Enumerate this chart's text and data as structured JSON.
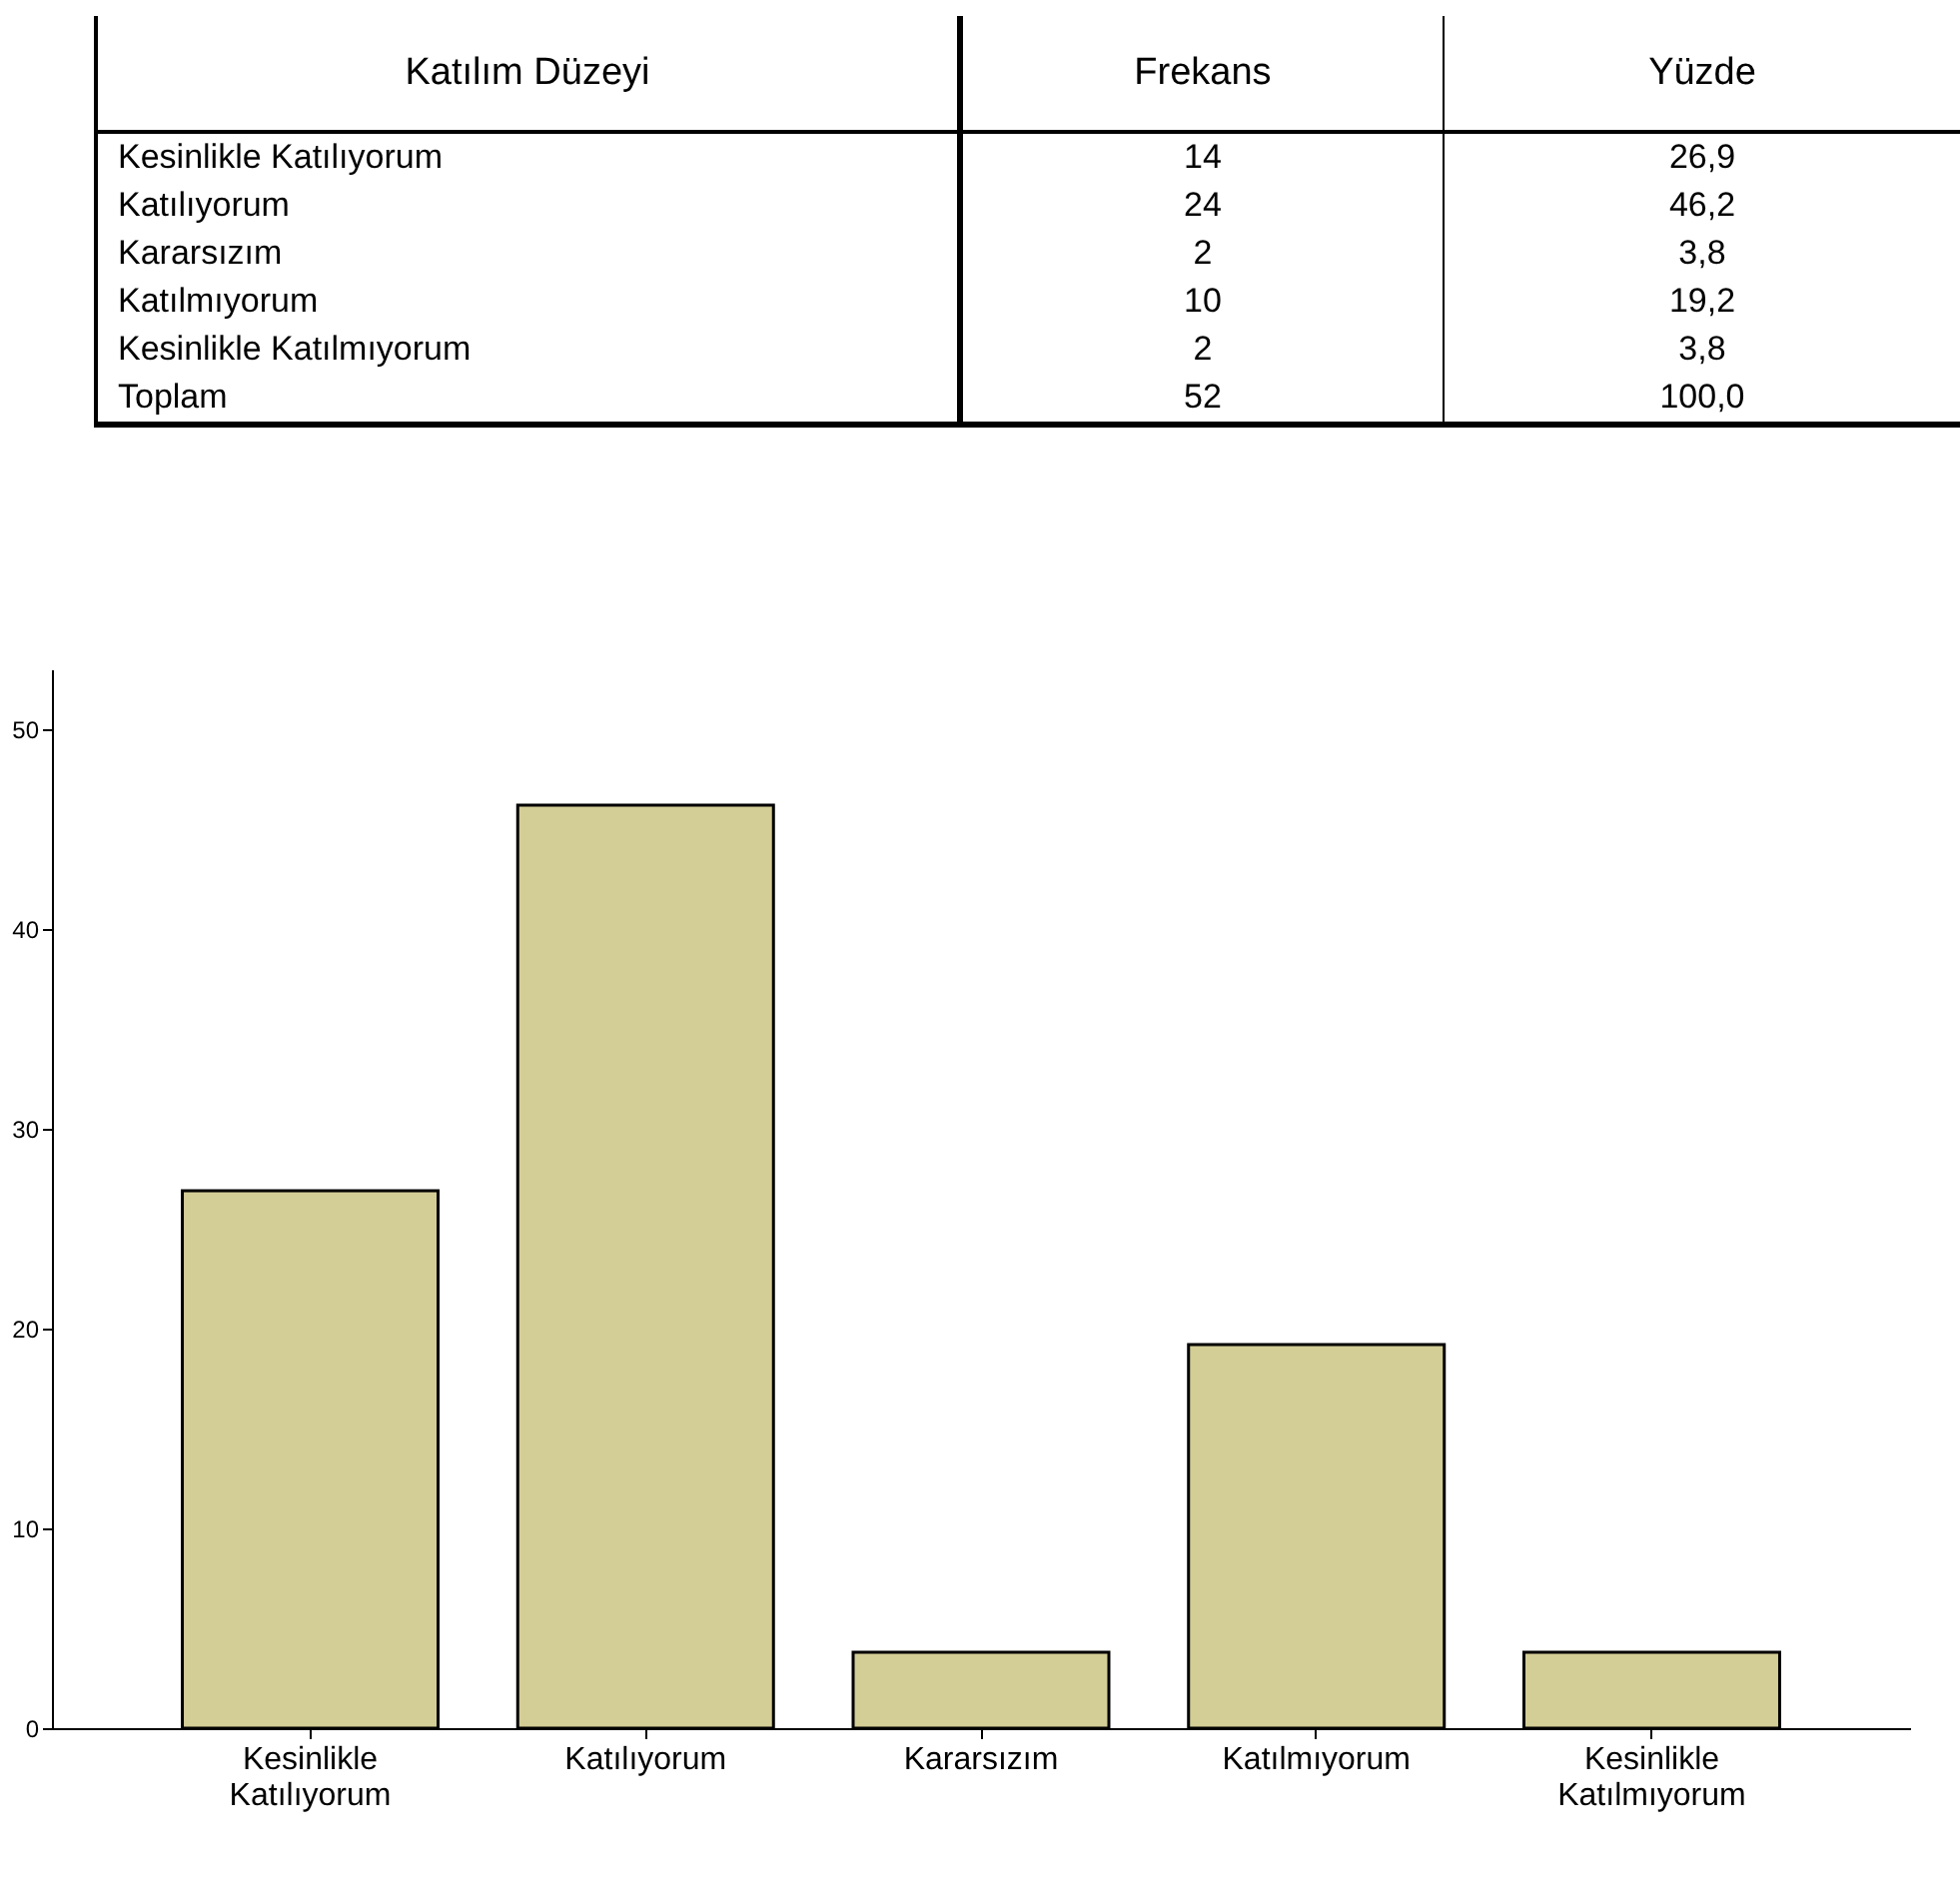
{
  "chart_data": {
    "type": "bar",
    "categories": [
      "Kesinlikle Katılıyorum",
      "Katılıyorum",
      "Kararsızım",
      "Katılmıyorum",
      "Kesinlikle Katılmıyorum"
    ],
    "values": [
      26.9,
      46.2,
      3.8,
      19.2,
      3.8
    ],
    "color": "#d3cd96",
    "ylim": [
      0,
      53
    ],
    "yticks": [
      0,
      10,
      20,
      30,
      40,
      50
    ],
    "annotations": [
      "Katılım Düzeyi",
      "Frekans",
      "Yüzde",
      "14",
      "24",
      "2",
      "10",
      "2",
      "26,9",
      "46,2",
      "3,8",
      "19,2",
      "3,8",
      "Toplam",
      "52",
      "100,0"
    ]
  }
}
